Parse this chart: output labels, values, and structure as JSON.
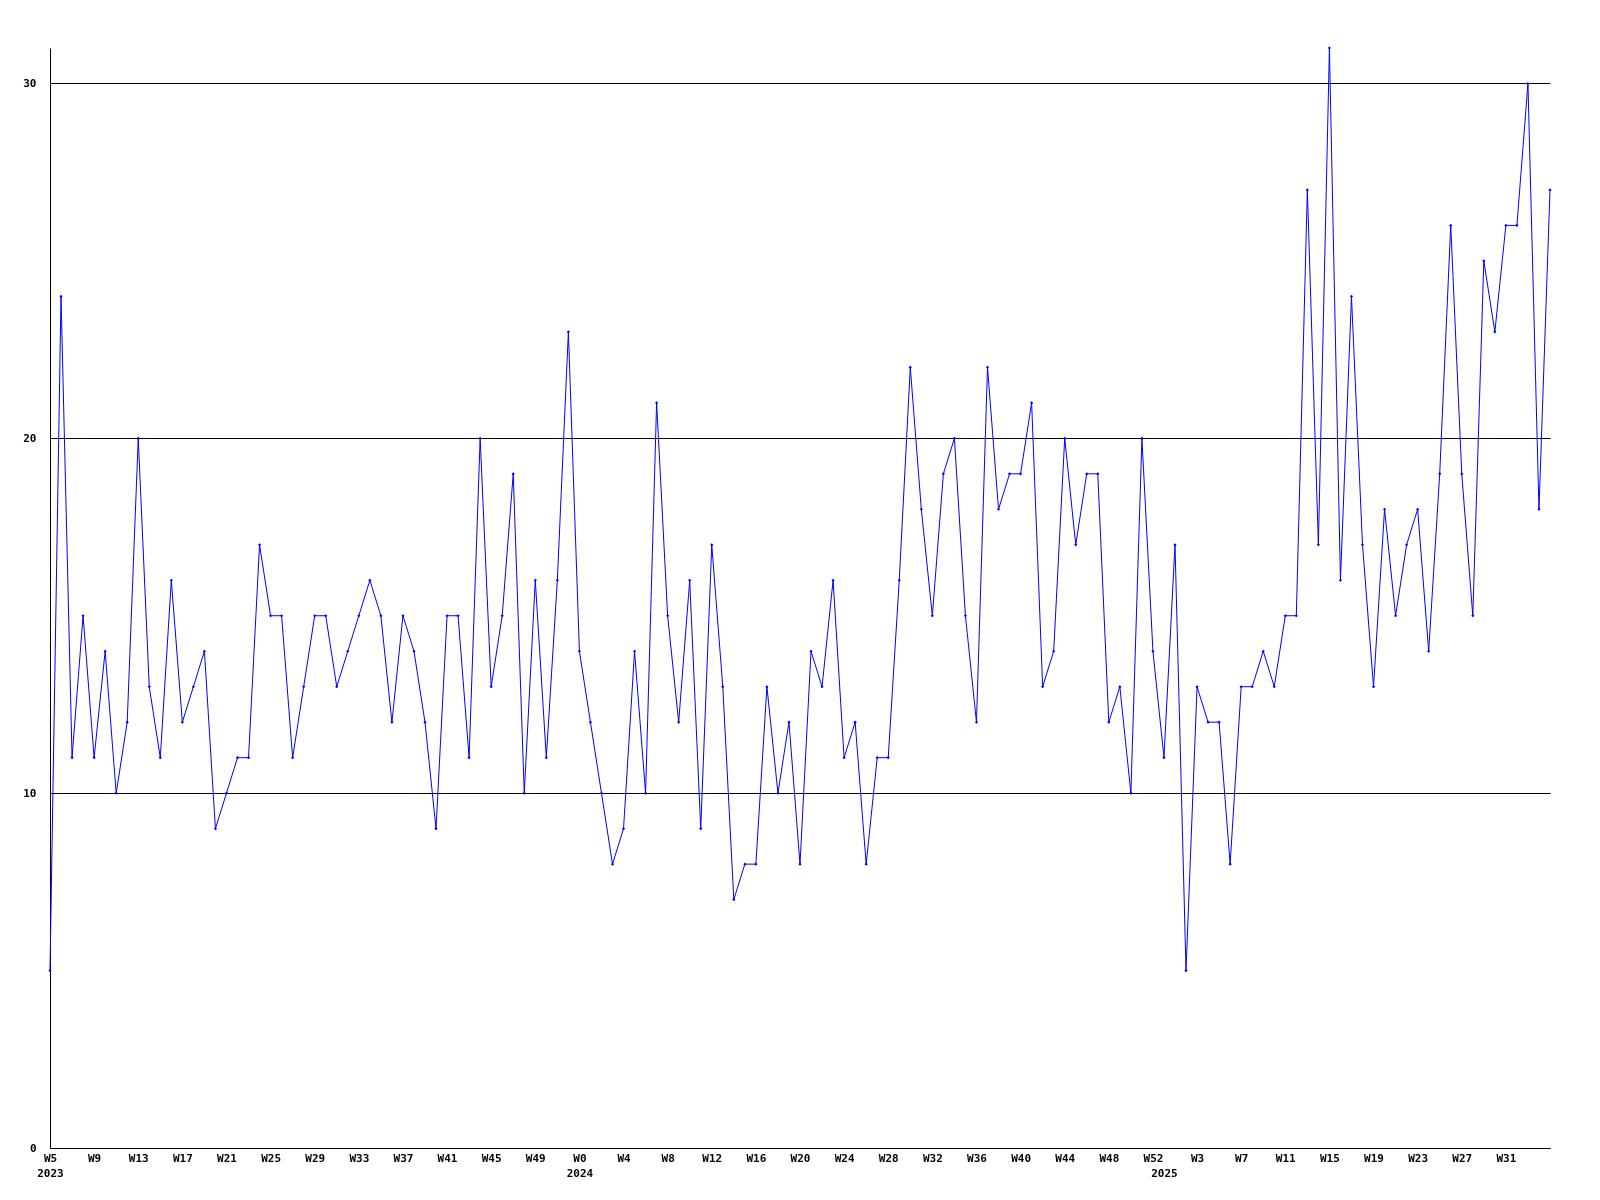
{
  "chart_data": {
    "type": "line",
    "color": "#0000ff",
    "marker": "diamond",
    "line_style": "solid",
    "grid": "y",
    "ylim": [
      0,
      31
    ],
    "yticks": [
      0,
      10,
      20,
      30
    ],
    "categories": [
      "W5\n2023",
      null,
      null,
      null,
      "W9",
      null,
      null,
      null,
      "W13",
      null,
      null,
      null,
      "W17",
      null,
      null,
      null,
      "W21",
      null,
      null,
      null,
      "W25",
      null,
      null,
      null,
      "W29",
      null,
      null,
      null,
      "W33",
      null,
      null,
      null,
      "W37",
      null,
      null,
      null,
      "W41",
      null,
      null,
      null,
      "W45",
      null,
      null,
      null,
      "W49",
      null,
      null,
      null,
      "W0\n2024",
      null,
      null,
      null,
      "W4",
      null,
      null,
      null,
      "W8",
      null,
      null,
      null,
      "W12",
      null,
      null,
      null,
      "W16",
      null,
      null,
      null,
      "W20",
      null,
      null,
      null,
      "W24",
      null,
      null,
      null,
      "W28",
      null,
      null,
      null,
      "W32",
      null,
      null,
      null,
      "W36",
      null,
      null,
      null,
      "W40",
      null,
      null,
      null,
      "W44",
      null,
      null,
      null,
      "W48",
      null,
      null,
      null,
      "W52",
      "\n2025",
      null,
      null,
      "W3",
      null,
      null,
      null,
      "W7",
      null,
      null,
      null,
      "W11",
      null,
      null,
      null,
      "W15",
      null,
      null,
      null,
      "W19",
      null,
      null,
      null,
      "W23",
      null,
      null,
      null,
      "W27",
      null,
      null,
      null,
      "W31",
      null,
      null,
      null,
      null
    ],
    "values": [
      5,
      24,
      11,
      15,
      11,
      14,
      10,
      12,
      20,
      13,
      11,
      16,
      12,
      13,
      14,
      9,
      10,
      11,
      11,
      17,
      15,
      15,
      11,
      13,
      15,
      15,
      13,
      14,
      15,
      16,
      15,
      12,
      15,
      14,
      12,
      9,
      15,
      15,
      11,
      20,
      13,
      15,
      19,
      10,
      16,
      11,
      16,
      23,
      14,
      12,
      10,
      8,
      9,
      14,
      10,
      21,
      15,
      12,
      16,
      9,
      17,
      13,
      7,
      8,
      8,
      13,
      10,
      12,
      8,
      14,
      13,
      16,
      11,
      12,
      8,
      11,
      11,
      16,
      22,
      18,
      15,
      19,
      20,
      15,
      12,
      22,
      18,
      19,
      19,
      21,
      13,
      14,
      20,
      17,
      19,
      19,
      12,
      13,
      10,
      20,
      14,
      11,
      17,
      5,
      13,
      12,
      12,
      8,
      13,
      13,
      14,
      13,
      15,
      15,
      27,
      17,
      31,
      16,
      24,
      17,
      13,
      18,
      15,
      17,
      18,
      14,
      19,
      26,
      19,
      15,
      25,
      23,
      26,
      26,
      30,
      18,
      27
    ]
  }
}
